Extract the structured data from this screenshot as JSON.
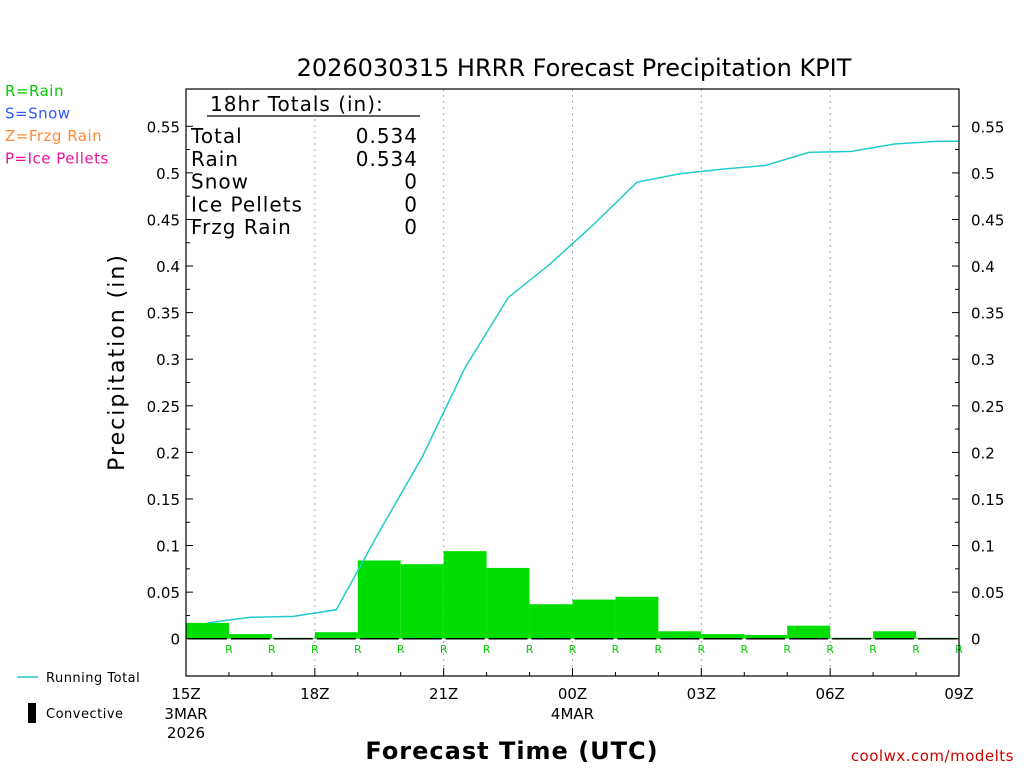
{
  "chart_data": {
    "type": "bar",
    "title": "2026030315 HRRR Forecast Precipitation KPIT",
    "ylabel": "Precipitation (in)",
    "xlabel": "Forecast Time (UTC)",
    "ylim": [
      -0.04,
      0.59
    ],
    "yticks": [
      "0",
      "0.05",
      "0.1",
      "0.15",
      "0.2",
      "0.25",
      "0.3",
      "0.35",
      "0.4",
      "0.45",
      "0.5",
      "0.55"
    ],
    "ytick_values": [
      0,
      0.05,
      0.1,
      0.15,
      0.2,
      0.25,
      0.3,
      0.35,
      0.4,
      0.45,
      0.5,
      0.55
    ],
    "x_range_hours": [
      0,
      18
    ],
    "xticks": [
      {
        "hour": 0,
        "label": "15Z",
        "sub1": "3MAR",
        "sub2": "2026"
      },
      {
        "hour": 3,
        "label": "18Z",
        "sub1": "",
        "sub2": ""
      },
      {
        "hour": 6,
        "label": "21Z",
        "sub1": "",
        "sub2": ""
      },
      {
        "hour": 9,
        "label": "00Z",
        "sub1": "4MAR",
        "sub2": ""
      },
      {
        "hour": 12,
        "label": "03Z",
        "sub1": "",
        "sub2": ""
      },
      {
        "hour": 15,
        "label": "06Z",
        "sub1": "",
        "sub2": ""
      },
      {
        "hour": 18,
        "label": "09Z",
        "sub1": "",
        "sub2": ""
      }
    ],
    "hourly_hours": [
      1,
      2,
      3,
      4,
      5,
      6,
      7,
      8,
      9,
      10,
      11,
      12,
      13,
      14,
      15,
      16,
      17,
      18
    ],
    "hourly_precip": [
      0.017,
      0.005,
      0.001,
      0.007,
      0.084,
      0.08,
      0.094,
      0.076,
      0.037,
      0.042,
      0.045,
      0.008,
      0.005,
      0.004,
      0.014,
      0.001,
      0.008,
      0.001
    ],
    "running_total": [
      0.017,
      0.023,
      0.024,
      0.031,
      0.115,
      0.195,
      0.291,
      0.366,
      0.403,
      0.445,
      0.49,
      0.499,
      0.504,
      0.508,
      0.522,
      0.523,
      0.531,
      0.534
    ],
    "precip_type_hours": [
      1,
      2,
      3,
      4,
      5,
      6,
      7,
      8,
      9,
      10,
      11,
      12,
      13,
      14,
      15,
      16,
      17,
      18
    ],
    "precip_type_letter": "R",
    "colors": {
      "bar": "#00dd00",
      "running_total": "#22cccc",
      "rain": "#00cc00",
      "snow": "#3355ff",
      "frzg_rain": "#ff8833",
      "ice_pellets": "#ee1199",
      "ptype_letter": "#00cc00"
    },
    "type_legend": [
      {
        "text": "R=Rain",
        "color": "#00cc00"
      },
      {
        "text": "S=Snow",
        "color": "#3355ff"
      },
      {
        "text": "Z=Frzg Rain",
        "color": "#ff8833"
      },
      {
        "text": "P=Ice Pellets",
        "color": "#ee1199"
      }
    ],
    "series_legend": {
      "running_total": "Running Total",
      "convective": "Convective"
    },
    "totals_box": {
      "header": "18hr Totals (in):",
      "rows": [
        {
          "label": "Total",
          "value": "0.534"
        },
        {
          "label": "Rain",
          "value": "0.534"
        },
        {
          "label": "Snow",
          "value": "0"
        },
        {
          "label": "Ice Pellets",
          "value": "0"
        },
        {
          "label": "Frzg Rain",
          "value": "0"
        }
      ]
    },
    "credit": "coolwx.com/modelts"
  }
}
